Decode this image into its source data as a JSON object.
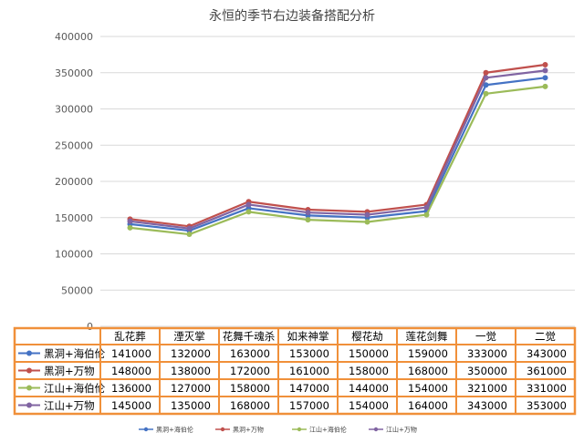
{
  "chart_data": {
    "type": "line",
    "title": "永恒的季节右边装备搭配分析",
    "categories": [
      "乱花葬",
      "湮灭掌",
      "花舞千魂杀",
      "如来神掌",
      "樱花劫",
      "莲花剑舞",
      "一觉",
      "二觉"
    ],
    "ylim": [
      0,
      400000
    ],
    "yticks": [
      0,
      50000,
      100000,
      150000,
      200000,
      250000,
      300000,
      350000,
      400000
    ],
    "grid": true,
    "legend_position": "bottom",
    "series": [
      {
        "name": "黑洞+海伯伦",
        "color": "#4472c4",
        "values": [
          141000,
          132000,
          163000,
          153000,
          150000,
          159000,
          333000,
          343000
        ]
      },
      {
        "name": "黑洞+万物",
        "color": "#c0504d",
        "values": [
          148000,
          138000,
          172000,
          161000,
          158000,
          168000,
          350000,
          361000
        ]
      },
      {
        "name": "江山+海伯伦",
        "color": "#9bbb59",
        "values": [
          136000,
          127000,
          158000,
          147000,
          144000,
          154000,
          321000,
          331000
        ]
      },
      {
        "name": "江山+万物",
        "color": "#8064a2",
        "values": [
          145000,
          135000,
          168000,
          157000,
          154000,
          164000,
          343000,
          353000
        ]
      }
    ],
    "table_border_color": "#f0903a"
  }
}
